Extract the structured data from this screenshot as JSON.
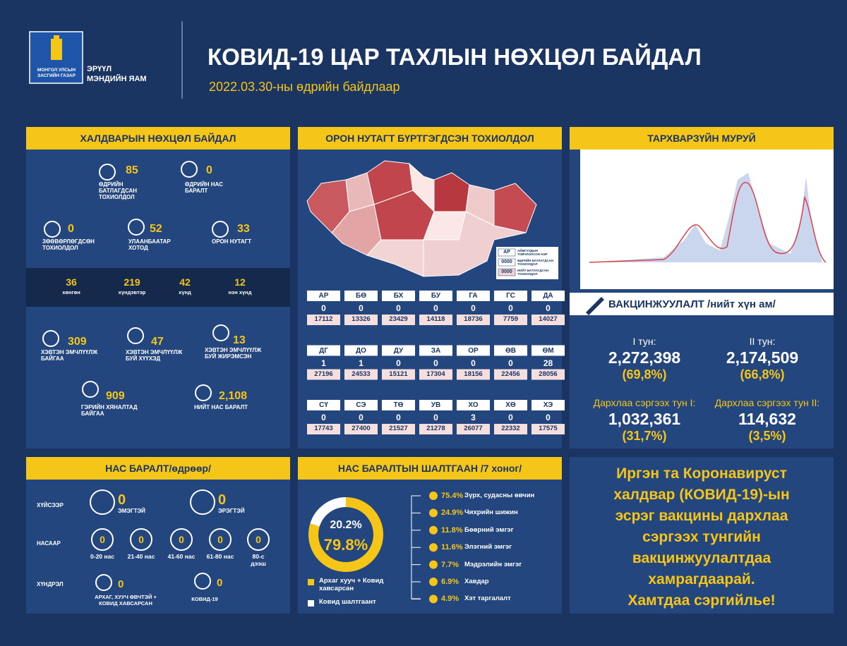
{
  "header": {
    "logo_text": [
      "МОНГОЛ УЛСЫН",
      "ЗАСГИЙН ГАЗАР"
    ],
    "ministry": [
      "ЭРҮҮЛ",
      "МЭНДИЙН ЯАМ"
    ],
    "title": "КОВИД-19 ЦАР ТАХЛЫН НӨХЦӨЛ БАЙДАЛ",
    "subtitle": "2022.03.30-ны өдрийн байдлаар"
  },
  "infection": {
    "title": "ХАЛДВАРЫН НӨХЦӨЛ БАЙДАЛ",
    "stats": [
      {
        "value": 85,
        "label": "ӨДРИЙН БАТЛАГДСАН ТОХИОЛДОЛ"
      },
      {
        "value": 0,
        "label": "ӨДРИЙН НАС БАРАЛТ"
      },
      {
        "value": 0,
        "label": "ЗӨӨВӨРЛӨГДСӨН ТОХИОЛДОЛ"
      },
      {
        "value": 52,
        "label": "УЛААНБААТАР ХОТОД"
      },
      {
        "value": 33,
        "label": "ОРОН НУТАГТ"
      }
    ],
    "severity": [
      {
        "value": 36,
        "label": "хөнгөн"
      },
      {
        "value": 219,
        "label": "хүндэвтэр"
      },
      {
        "value": 42,
        "label": "хүнд"
      },
      {
        "value": 12,
        "label": "нэн хүнд"
      }
    ],
    "care": [
      {
        "value": 309,
        "label": "ХЭВТЭН ЭМЧЛҮҮЛЖ БАЙГАА"
      },
      {
        "value": 47,
        "label": "ХЭВТЭН ЭМЧЛҮҮЛЖ БУЙ ХҮҮХЭД"
      },
      {
        "value": 13,
        "label": "ХЭВТЭН ЭМЧЛҮҮЛЖ БУЙ ЖИРЭМСЭН"
      },
      {
        "value": 909,
        "label": "ГЭРИЙН ХЯНАЛТАД БАЙГАА"
      },
      {
        "value": "2,108",
        "label": "НИЙТ НАС БАРАЛТ"
      }
    ]
  },
  "regions": {
    "title": "ОРОН НУТАГТ БҮРТГЭГДСЭН ТОХИОЛДОЛ",
    "legend": [
      {
        "key": "АР",
        "label": "АЙМГУУДЫН ТОВЧЛОЛСОН НЭР"
      },
      {
        "key": "0000",
        "label": "ӨДРИЙН БАТЛАГДСАН ТОХИОЛДОЛ"
      },
      {
        "key": "0000",
        "label": "НИЙТ БАТЛАГДСАН ТОХИОЛДОЛ"
      }
    ],
    "provinces": [
      {
        "code": "АР",
        "daily": 0,
        "total": 17112
      },
      {
        "code": "БӨ",
        "daily": 0,
        "total": 13326
      },
      {
        "code": "БХ",
        "daily": 0,
        "total": 23429
      },
      {
        "code": "БУ",
        "daily": 0,
        "total": 14118
      },
      {
        "code": "ГА",
        "daily": 0,
        "total": 18736
      },
      {
        "code": "ГС",
        "daily": 0,
        "total": 7759
      },
      {
        "code": "ДА",
        "daily": 0,
        "total": 14027
      },
      {
        "code": "ДГ",
        "daily": 1,
        "total": 27196
      },
      {
        "code": "ДО",
        "daily": 1,
        "total": 24533
      },
      {
        "code": "ДУ",
        "daily": 0,
        "total": 15121
      },
      {
        "code": "ЗА",
        "daily": 0,
        "total": 17304
      },
      {
        "code": "ОР",
        "daily": 0,
        "total": 18156
      },
      {
        "code": "ӨВ",
        "daily": 0,
        "total": 22456
      },
      {
        "code": "ӨМ",
        "daily": 28,
        "total": 28056
      },
      {
        "code": "СҮ",
        "daily": 0,
        "total": 17743
      },
      {
        "code": "СЭ",
        "daily": 0,
        "total": 27400
      },
      {
        "code": "ТӨ",
        "daily": 0,
        "total": 21527
      },
      {
        "code": "УВ",
        "daily": 0,
        "total": 21278
      },
      {
        "code": "ХО",
        "daily": 3,
        "total": 26077
      },
      {
        "code": "ХӨ",
        "daily": 0,
        "total": 22332
      },
      {
        "code": "ХЭ",
        "daily": 0,
        "total": 17575
      }
    ]
  },
  "epi_curve": {
    "title": "ТАРХВАРЗҮЙН МУРУЙ"
  },
  "vaccination": {
    "title": "ВАКЦИНЖУУЛАЛТ /нийт хүн ам/",
    "doses": [
      {
        "label": "I тун:",
        "count": "2,272,398",
        "percent": "(69,8%)"
      },
      {
        "label": "II тун:",
        "count": "2,174,509",
        "percent": "(66,8%)"
      },
      {
        "label": "Дархлаа сэргээх тун I:",
        "count": "1,032,361",
        "percent": "(31,7%)"
      },
      {
        "label": "Дархлаа сэргээх тун II:",
        "count": "114,632",
        "percent": "(3,5%)"
      }
    ]
  },
  "deaths": {
    "title": "НАС БАРАЛТ/өдрөөр/",
    "by_sex": {
      "label": "ХҮЙСЭЭР",
      "items": [
        {
          "value": 0,
          "label": "ЭМЭГТЭЙ"
        },
        {
          "value": 0,
          "label": "ЭРЭГТЭЙ"
        }
      ]
    },
    "by_age": {
      "label": "НАСААР",
      "items": [
        {
          "value": 0,
          "label": "0-20 нас"
        },
        {
          "value": 0,
          "label": "21-40 нас"
        },
        {
          "value": 0,
          "label": "41-60 нас"
        },
        {
          "value": 0,
          "label": "61-80 нас"
        },
        {
          "value": 0,
          "label": "80-с дээш"
        }
      ]
    },
    "by_complication": {
      "label": "ХҮНДРЭЛ",
      "items": [
        {
          "value": 0,
          "label": "АРХАГ, ХУУЧ ӨВЧТЭЙ + КОВИД ХАВСАРСАН"
        },
        {
          "value": 0,
          "label": "КОВИД-19"
        }
      ]
    }
  },
  "causes": {
    "title": "НАС БАРАЛТЫН ШАЛТГААН /7 хоног/",
    "donut": {
      "values": [
        20.2,
        79.8
      ],
      "value_labels": [
        "20.2%",
        "79.8%"
      ],
      "colors": [
        "#ffffff",
        "#f5c518"
      ],
      "names": [
        "Ковид шалтгаант",
        "Архаг хууч + Ковид хавсарсан"
      ]
    },
    "items": [
      {
        "percent": "75.4%",
        "label": "Зүрх, судасны өвчин"
      },
      {
        "percent": "24.9%",
        "label": "Чихрийн шижин"
      },
      {
        "percent": "11.8%",
        "label": "Бөөрний эмгэг"
      },
      {
        "percent": "11.6%",
        "label": "Элэгний эмгэг"
      },
      {
        "percent": "7.7%",
        "label": "Мэдрэлийн эмгэг"
      },
      {
        "percent": "6.9%",
        "label": "Хавдар"
      },
      {
        "percent": "4.9%",
        "label": "Хэт таргалалт"
      }
    ]
  },
  "message": {
    "lines": [
      "Иргэн та Коронавируст",
      "халдвар (КОВИД-19)-ын",
      "эсрэг вакцины дархлаа",
      "сэргээх тунгийн",
      "вакцинжуулалтдаа",
      "хамрагдаарай.",
      "Хамтдаа сэргийлье!"
    ]
  }
}
